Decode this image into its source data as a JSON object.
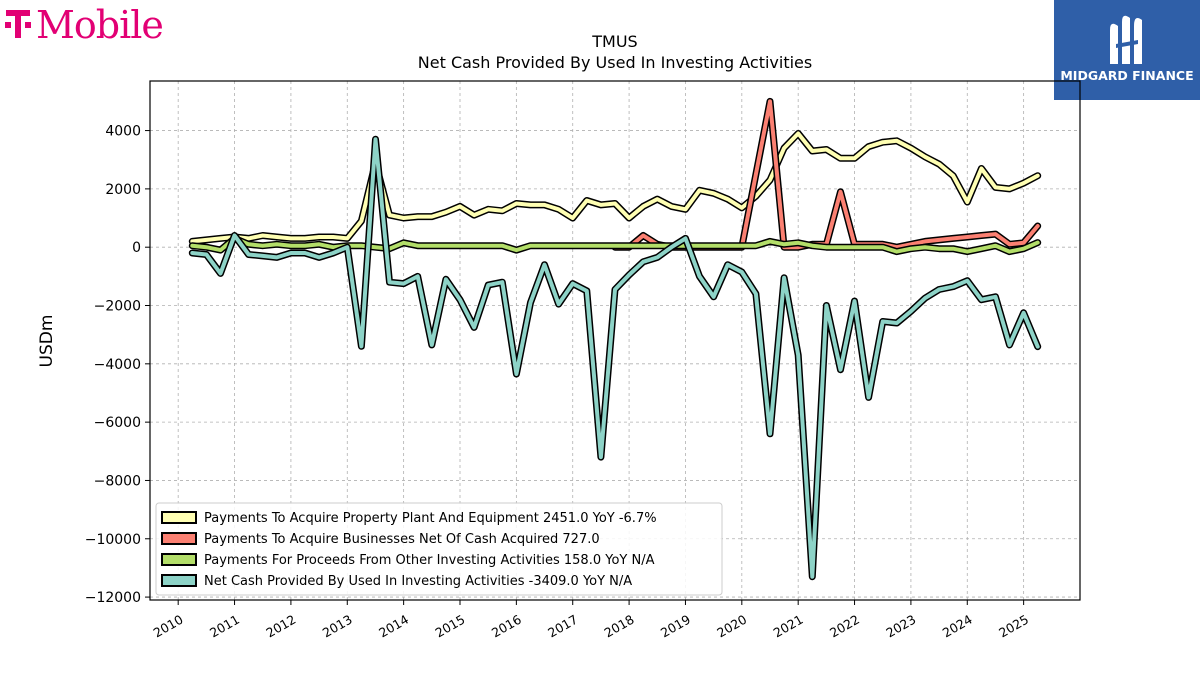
{
  "brand": {
    "logo_text": "T Mobile",
    "badge_text": "MIDGARD FINANCE",
    "badge_color": "#2f5fa8",
    "logo_color": "#e20074"
  },
  "chart_data": {
    "type": "line",
    "title": "TMUS",
    "subtitle": "Net Cash Provided By Used In Investing Activities",
    "xlabel": "",
    "ylabel": "USDm",
    "xlim": [
      2009.5,
      2026.0
    ],
    "ylim": [
      -12100,
      5700
    ],
    "x_ticks": [
      "2010",
      "2011",
      "2012",
      "2013",
      "2014",
      "2015",
      "2016",
      "2017",
      "2018",
      "2019",
      "2020",
      "2021",
      "2022",
      "2023",
      "2024",
      "2025"
    ],
    "y_ticks": [
      "4000",
      "2000",
      "0",
      "−2000",
      "−4000",
      "−6000",
      "−8000",
      "−10000",
      "−12000"
    ],
    "grid": true,
    "legend_position": "lower-left",
    "series": [
      {
        "name": "Payments To Acquire Property Plant And Equipment  2451.0 YoY -6.7%",
        "color": "#ffffb3",
        "x": [
          2010.25,
          2010.5,
          2010.75,
          2011.0,
          2011.25,
          2011.5,
          2011.75,
          2012.0,
          2012.25,
          2012.5,
          2012.75,
          2013.0,
          2013.25,
          2013.5,
          2013.75,
          2014.0,
          2014.25,
          2014.5,
          2014.75,
          2015.0,
          2015.25,
          2015.5,
          2015.75,
          2016.0,
          2016.25,
          2016.5,
          2016.75,
          2017.0,
          2017.25,
          2017.5,
          2017.75,
          2018.0,
          2018.25,
          2018.5,
          2018.75,
          2019.0,
          2019.25,
          2019.5,
          2019.75,
          2020.0,
          2020.25,
          2020.5,
          2020.75,
          2021.0,
          2021.25,
          2021.5,
          2021.75,
          2022.0,
          2022.25,
          2022.5,
          2022.75,
          2023.0,
          2023.25,
          2023.5,
          2023.75,
          2024.0,
          2024.25,
          2024.5,
          2024.75,
          2025.0,
          2025.25
        ],
        "values": [
          200,
          250,
          300,
          350,
          300,
          400,
          350,
          300,
          300,
          350,
          350,
          300,
          900,
          2900,
          1100,
          1000,
          1050,
          1050,
          1200,
          1400,
          1100,
          1300,
          1250,
          1500,
          1450,
          1450,
          1300,
          1000,
          1600,
          1450,
          1500,
          1000,
          1400,
          1650,
          1400,
          1300,
          1950,
          1850,
          1650,
          1350,
          1750,
          2300,
          3400,
          3900,
          3300,
          3350,
          3050,
          3050,
          3450,
          3600,
          3650,
          3400,
          3100,
          2850,
          2450,
          1550,
          2700,
          2050,
          2000,
          2200,
          2451
        ]
      },
      {
        "name": "Payments To Acquire Businesses Net Of Cash Acquired  727.0",
        "color": "#fb8072",
        "x": [
          2017.75,
          2018.0,
          2018.25,
          2018.5,
          2018.75,
          2019.0,
          2019.25,
          2019.5,
          2019.75,
          2020.0,
          2020.25,
          2020.5,
          2020.75,
          2021.0,
          2021.25,
          2021.5,
          2021.75,
          2022.0,
          2022.25,
          2022.5,
          2022.75,
          2023.0,
          2023.25,
          2023.5,
          2023.75,
          2024.0,
          2024.25,
          2024.5,
          2024.75,
          2025.0,
          2025.25
        ],
        "values": [
          0,
          0,
          400,
          100,
          0,
          0,
          0,
          0,
          0,
          0,
          2500,
          5000,
          0,
          0,
          100,
          100,
          1900,
          100,
          100,
          100,
          0,
          100,
          200,
          250,
          300,
          350,
          400,
          450,
          100,
          150,
          727
        ]
      },
      {
        "name": "Payments For Proceeds From Other Investing Activities  158.0 YoY N/A",
        "color": "#b3de69",
        "x": [
          2010.25,
          2010.5,
          2010.75,
          2011.0,
          2011.25,
          2011.5,
          2011.75,
          2012.0,
          2012.25,
          2012.5,
          2012.75,
          2013.0,
          2013.25,
          2013.5,
          2013.75,
          2014.0,
          2014.25,
          2014.5,
          2014.75,
          2015.0,
          2015.25,
          2015.5,
          2015.75,
          2016.0,
          2016.25,
          2016.5,
          2016.75,
          2017.0,
          2017.25,
          2017.5,
          2017.75,
          2018.0,
          2018.25,
          2018.5,
          2018.75,
          2019.0,
          2019.25,
          2019.5,
          2019.75,
          2020.0,
          2020.25,
          2020.5,
          2020.75,
          2021.0,
          2021.25,
          2021.5,
          2021.75,
          2022.0,
          2022.25,
          2022.5,
          2022.75,
          2023.0,
          2023.25,
          2023.5,
          2023.75,
          2024.0,
          2024.25,
          2024.5,
          2024.75,
          2025.0,
          2025.25
        ],
        "values": [
          50,
          0,
          -100,
          300,
          100,
          50,
          100,
          50,
          50,
          100,
          0,
          50,
          50,
          0,
          -50,
          150,
          50,
          50,
          50,
          50,
          50,
          50,
          50,
          -100,
          50,
          50,
          50,
          50,
          50,
          50,
          50,
          50,
          50,
          50,
          50,
          50,
          50,
          50,
          50,
          50,
          50,
          200,
          100,
          150,
          50,
          0,
          0,
          0,
          0,
          0,
          -150,
          -50,
          0,
          -50,
          -50,
          -150,
          -50,
          50,
          -150,
          -50,
          158
        ]
      },
      {
        "name": "Net Cash Provided By Used In Investing Activities  -3409.0 YoY N/A",
        "color": "#8dd3c7",
        "x": [
          2010.25,
          2010.5,
          2010.75,
          2011.0,
          2011.25,
          2011.5,
          2011.75,
          2012.0,
          2012.25,
          2012.5,
          2012.75,
          2013.0,
          2013.25,
          2013.5,
          2013.75,
          2014.0,
          2014.25,
          2014.5,
          2014.75,
          2015.0,
          2015.25,
          2015.5,
          2015.75,
          2016.0,
          2016.25,
          2016.5,
          2016.75,
          2017.0,
          2017.25,
          2017.5,
          2017.75,
          2018.0,
          2018.25,
          2018.5,
          2018.75,
          2019.0,
          2019.25,
          2019.5,
          2019.75,
          2020.0,
          2020.25,
          2020.5,
          2020.75,
          2021.0,
          2021.25,
          2021.5,
          2021.75,
          2022.0,
          2022.25,
          2022.5,
          2022.75,
          2023.0,
          2023.25,
          2023.5,
          2023.75,
          2024.0,
          2024.25,
          2024.5,
          2024.75,
          2025.0,
          2025.25
        ],
        "values": [
          -200,
          -250,
          -900,
          400,
          -250,
          -300,
          -350,
          -200,
          -200,
          -350,
          -200,
          0,
          -3400,
          3700,
          -1200,
          -1250,
          -1000,
          -3350,
          -1100,
          -1800,
          -2750,
          -1300,
          -1200,
          -4350,
          -1900,
          -600,
          -1950,
          -1250,
          -1500,
          -7200,
          -1450,
          -950,
          -500,
          -350,
          0,
          300,
          -1000,
          -1700,
          -600,
          -850,
          -1600,
          -6400,
          -1050,
          -3700,
          -11300,
          -2000,
          -4200,
          -1850,
          -5150,
          -2550,
          -2600,
          -2200,
          -1750,
          -1450,
          -1350,
          -1150,
          -1800,
          -1700,
          -3350,
          -2250,
          -3409
        ]
      }
    ]
  }
}
